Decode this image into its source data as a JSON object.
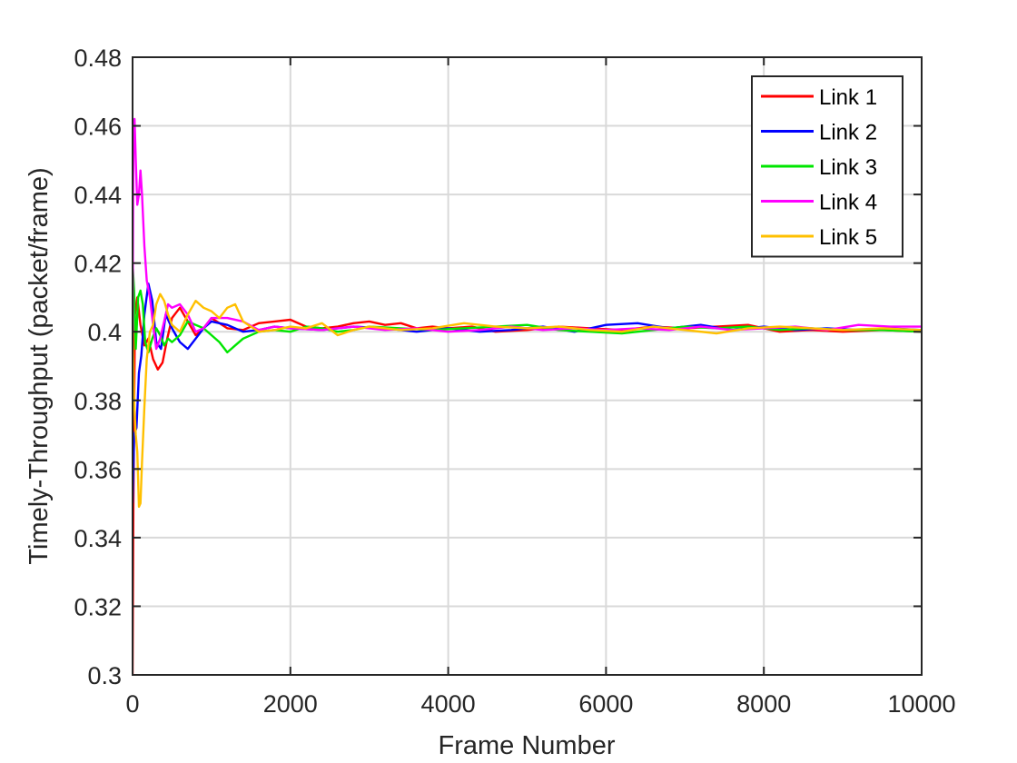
{
  "chart_data": {
    "type": "line",
    "title": "",
    "xlabel": "Frame Number",
    "ylabel": "Timely-Throughput (packet/frame)",
    "xlim": [
      0,
      10000
    ],
    "ylim": [
      0.3,
      0.48
    ],
    "xticks": [
      0,
      2000,
      4000,
      6000,
      8000,
      10000
    ],
    "xtick_labels": [
      "0",
      "2000",
      "4000",
      "6000",
      "8000",
      "10000"
    ],
    "yticks": [
      0.3,
      0.32,
      0.34,
      0.36,
      0.38,
      0.4,
      0.42,
      0.44,
      0.46,
      0.48
    ],
    "ytick_labels": [
      "0.3",
      "0.32",
      "0.34",
      "0.36",
      "0.38",
      "0.4",
      "0.42",
      "0.44",
      "0.46",
      "0.48"
    ],
    "grid": true,
    "legend_position": "top-right",
    "series": [
      {
        "name": "Link 1",
        "color": "#ff0000",
        "x": [
          0,
          10,
          30,
          60,
          100,
          150,
          200,
          260,
          320,
          380,
          440,
          500,
          600,
          700,
          800,
          900,
          1000,
          1200,
          1400,
          1600,
          1800,
          2000,
          2200,
          2400,
          2600,
          2800,
          3000,
          3200,
          3400,
          3600,
          3800,
          4000,
          4300,
          4600,
          5000,
          5400,
          5800,
          6200,
          6600,
          7000,
          7400,
          7800,
          8200,
          8600,
          9000,
          9500,
          10000
        ],
        "y": [
          0.3,
          0.35,
          0.405,
          0.41,
          0.402,
          0.396,
          0.398,
          0.392,
          0.389,
          0.391,
          0.398,
          0.404,
          0.407,
          0.403,
          0.399,
          0.401,
          0.404,
          0.401,
          0.4005,
          0.4025,
          0.403,
          0.4035,
          0.4015,
          0.401,
          0.4015,
          0.4025,
          0.403,
          0.402,
          0.4025,
          0.401,
          0.4015,
          0.401,
          0.4015,
          0.4,
          0.4005,
          0.4015,
          0.401,
          0.4005,
          0.4015,
          0.401,
          0.4015,
          0.402,
          0.4,
          0.4005,
          0.4,
          0.4005,
          0.4
        ]
      },
      {
        "name": "Link 2",
        "color": "#0000ff",
        "x": [
          0,
          20,
          50,
          80,
          110,
          150,
          200,
          250,
          300,
          360,
          420,
          500,
          600,
          700,
          800,
          900,
          1000,
          1200,
          1400,
          1600,
          1800,
          2000,
          2400,
          2800,
          3200,
          3600,
          4000,
          4400,
          4800,
          5200,
          5600,
          6000,
          6400,
          6800,
          7200,
          7600,
          8000,
          8400,
          8800,
          9200,
          9600,
          10000
        ],
        "y": [
          0.35,
          0.37,
          0.372,
          0.388,
          0.393,
          0.405,
          0.414,
          0.409,
          0.397,
          0.395,
          0.405,
          0.401,
          0.397,
          0.395,
          0.398,
          0.401,
          0.403,
          0.402,
          0.4,
          0.4005,
          0.4015,
          0.401,
          0.4005,
          0.4015,
          0.401,
          0.4,
          0.401,
          0.4,
          0.4005,
          0.4015,
          0.4,
          0.402,
          0.4025,
          0.401,
          0.402,
          0.4005,
          0.4015,
          0.4005,
          0.401,
          0.4005,
          0.401,
          0.4005
        ]
      },
      {
        "name": "Link 3",
        "color": "#00e600",
        "x": [
          0,
          20,
          40,
          70,
          100,
          130,
          160,
          200,
          250,
          300,
          350,
          400,
          450,
          500,
          600,
          700,
          800,
          900,
          1000,
          1100,
          1200,
          1300,
          1400,
          1600,
          1800,
          2000,
          2200,
          2400,
          2600,
          2800,
          3000,
          3400,
          3800,
          4200,
          4600,
          5000,
          5400,
          5800,
          6200,
          6600,
          7000,
          7400,
          7800,
          8200,
          8600,
          9000,
          9500,
          10000
        ],
        "y": [
          0.42,
          0.412,
          0.395,
          0.41,
          0.412,
          0.408,
          0.397,
          0.394,
          0.398,
          0.401,
          0.399,
          0.396,
          0.398,
          0.397,
          0.399,
          0.403,
          0.402,
          0.401,
          0.399,
          0.397,
          0.394,
          0.396,
          0.398,
          0.4,
          0.4005,
          0.4,
          0.4015,
          0.401,
          0.4,
          0.4005,
          0.4015,
          0.401,
          0.4005,
          0.401,
          0.4015,
          0.402,
          0.4005,
          0.4,
          0.3995,
          0.4005,
          0.4015,
          0.401,
          0.4015,
          0.4005,
          0.401,
          0.4005,
          0.4005,
          0.4
        ]
      },
      {
        "name": "Link 4",
        "color": "#ff00ff",
        "x": [
          0,
          10,
          25,
          40,
          60,
          80,
          100,
          120,
          150,
          180,
          220,
          260,
          300,
          350,
          400,
          450,
          500,
          600,
          700,
          800,
          900,
          1000,
          1200,
          1400,
          1600,
          1800,
          2000,
          2400,
          2800,
          3200,
          3600,
          4000,
          4400,
          4800,
          5200,
          5600,
          6000,
          6400,
          6800,
          7200,
          7600,
          8000,
          8400,
          8800,
          9200,
          9600,
          10000
        ],
        "y": [
          0.4,
          0.455,
          0.462,
          0.45,
          0.437,
          0.44,
          0.447,
          0.44,
          0.425,
          0.415,
          0.41,
          0.402,
          0.395,
          0.398,
          0.403,
          0.408,
          0.407,
          0.408,
          0.405,
          0.4,
          0.401,
          0.404,
          0.404,
          0.403,
          0.4005,
          0.4015,
          0.401,
          0.4005,
          0.4015,
          0.4005,
          0.401,
          0.4,
          0.4005,
          0.4015,
          0.4005,
          0.401,
          0.4005,
          0.401,
          0.4005,
          0.4015,
          0.4005,
          0.401,
          0.4015,
          0.4005,
          0.402,
          0.4015,
          0.4015
        ]
      },
      {
        "name": "Link 5",
        "color": "#ffc000",
        "x": [
          0,
          20,
          40,
          60,
          80,
          100,
          120,
          150,
          180,
          220,
          260,
          300,
          350,
          400,
          450,
          500,
          600,
          700,
          800,
          900,
          1000,
          1100,
          1200,
          1300,
          1400,
          1600,
          1800,
          2000,
          2200,
          2400,
          2600,
          2800,
          3000,
          3400,
          3800,
          4200,
          4600,
          5000,
          5400,
          5800,
          6200,
          6600,
          7000,
          7400,
          7800,
          8200,
          8600,
          9000,
          9500,
          10000
        ],
        "y": [
          0.4,
          0.38,
          0.37,
          0.365,
          0.349,
          0.35,
          0.362,
          0.378,
          0.392,
          0.4,
          0.402,
          0.408,
          0.411,
          0.409,
          0.405,
          0.402,
          0.4,
          0.405,
          0.409,
          0.407,
          0.406,
          0.404,
          0.407,
          0.408,
          0.403,
          0.4,
          0.4005,
          0.4015,
          0.401,
          0.4025,
          0.399,
          0.4005,
          0.4015,
          0.4005,
          0.401,
          0.4025,
          0.4015,
          0.401,
          0.4015,
          0.4005,
          0.4,
          0.4015,
          0.4005,
          0.3995,
          0.401,
          0.4015,
          0.401,
          0.4005,
          0.401,
          0.4005
        ]
      }
    ]
  }
}
